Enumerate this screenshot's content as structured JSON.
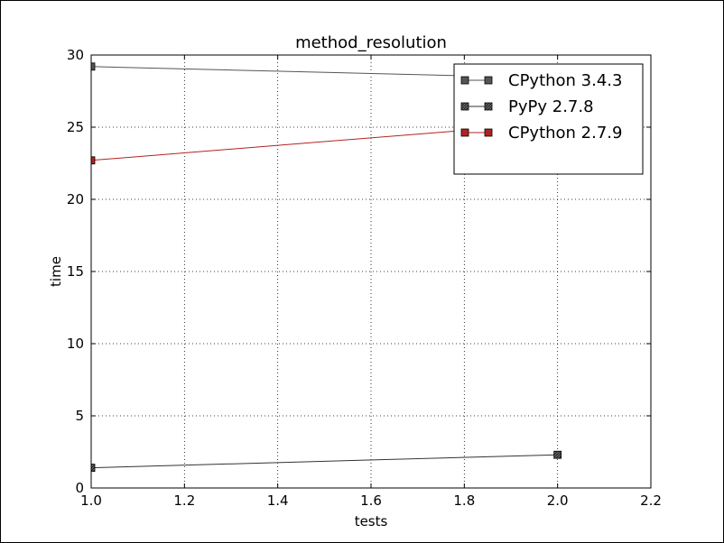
{
  "chart_data": {
    "type": "line",
    "title": "method_resolution",
    "xlabel": "tests",
    "ylabel": "time",
    "xlim": [
      1.0,
      2.2
    ],
    "ylim": [
      0,
      30
    ],
    "xticks": [
      "1.0",
      "1.2",
      "1.4",
      "1.6",
      "1.8",
      "2.0",
      "2.2"
    ],
    "yticks": [
      "0",
      "5",
      "10",
      "15",
      "20",
      "25",
      "30"
    ],
    "grid": true,
    "legend_position": "top-right",
    "series": [
      {
        "name": "CPython 3.4.3",
        "color": "#555555",
        "marker": "square-filled",
        "x": [
          1.0,
          2.0
        ],
        "y": [
          29.2,
          28.4
        ]
      },
      {
        "name": "PyPy 2.7.8",
        "color": "#333333",
        "marker": "square-hatched",
        "x": [
          1.0,
          2.0
        ],
        "y": [
          1.4,
          2.3
        ]
      },
      {
        "name": "CPython 2.7.9",
        "color": "#b22222",
        "marker": "square-filled",
        "x": [
          1.0,
          2.0
        ],
        "y": [
          22.7,
          25.3
        ]
      }
    ]
  }
}
